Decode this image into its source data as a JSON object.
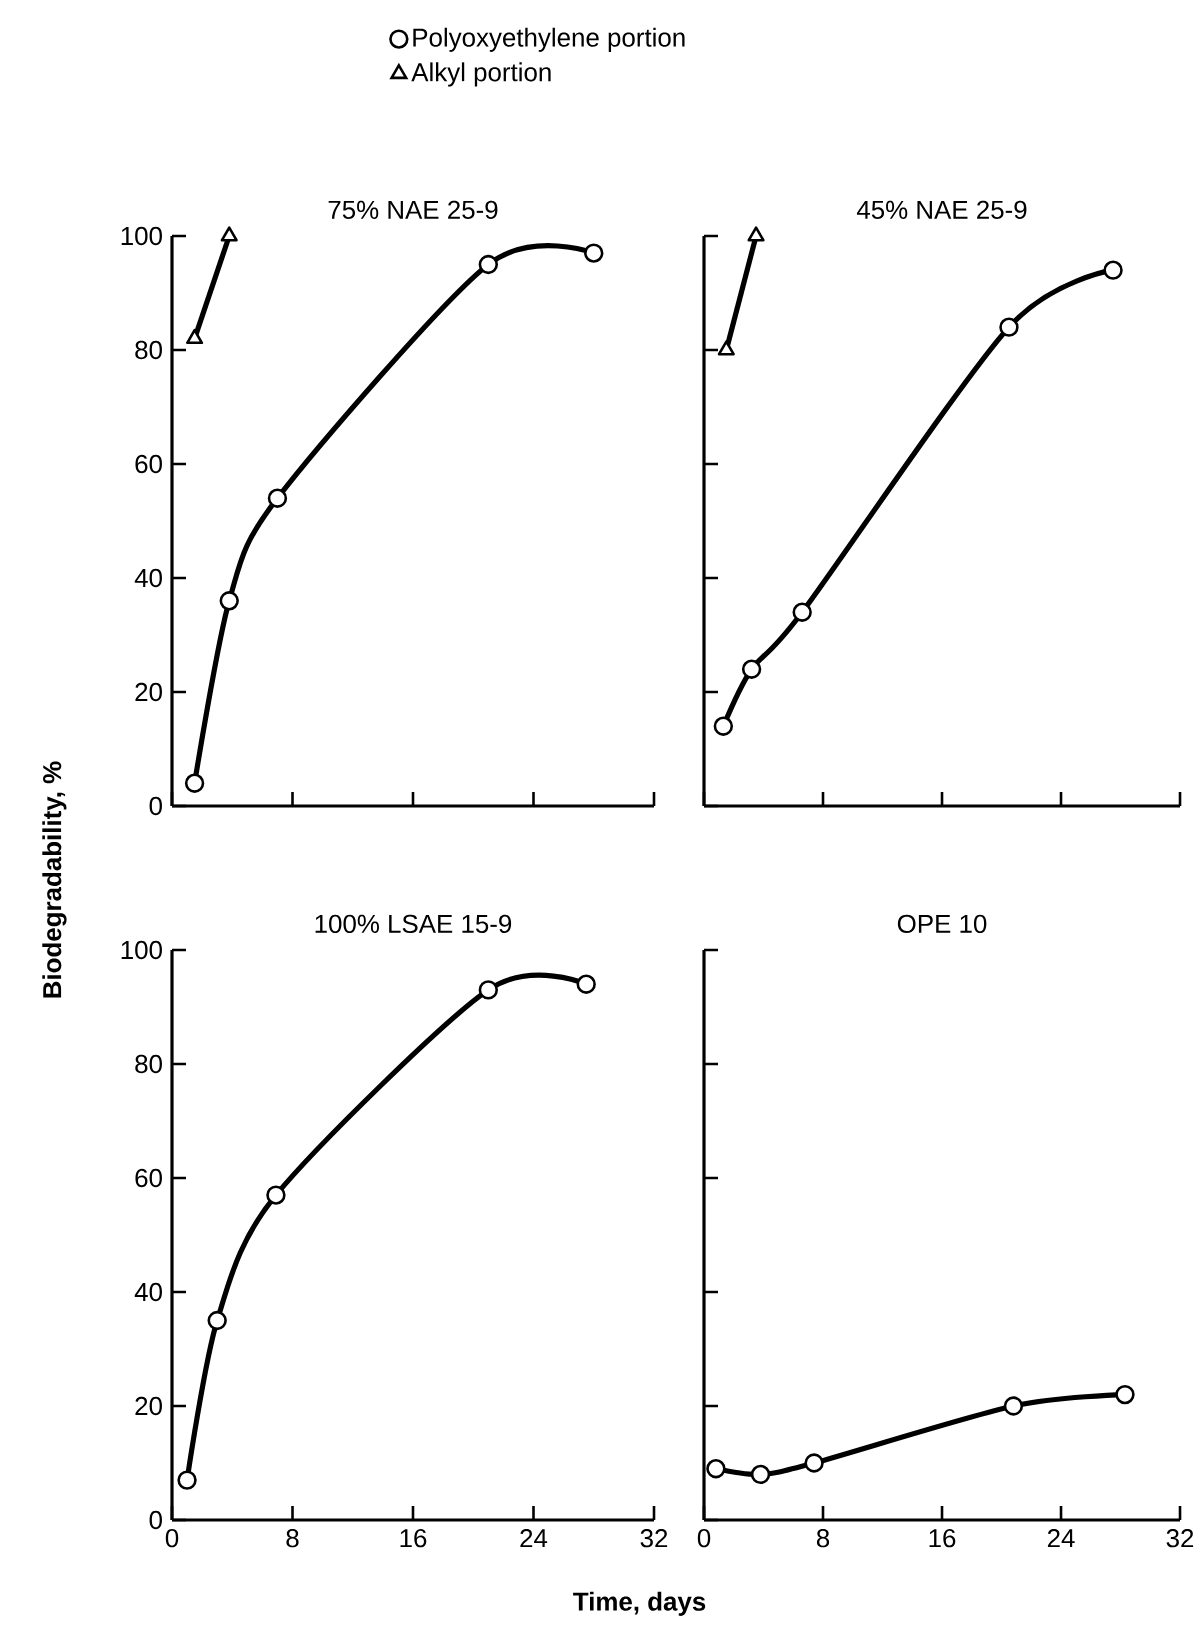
{
  "chart_data": [
    {
      "type": "line",
      "title": "75% NAE 25-9",
      "ylabel": "Biodegradability, %",
      "xlim": [
        0,
        32
      ],
      "ylim": [
        0,
        100
      ],
      "xticks": [
        0,
        8,
        16,
        24,
        32
      ],
      "yticks": [
        0,
        20,
        40,
        60,
        80,
        100
      ],
      "tick_labels": "y",
      "legend": "top",
      "series": [
        {
          "name": "Polyoxyethylene portion",
          "color": "#000000",
          "marker": "circle",
          "x": [
            1.5,
            3.8,
            7,
            21,
            28
          ],
          "values": [
            4,
            36,
            54,
            95,
            97
          ]
        },
        {
          "name": "Alkyl portion",
          "color": "#000000",
          "marker": "triangle",
          "x": [
            1.5,
            3.8
          ],
          "values": [
            82,
            100
          ]
        }
      ]
    },
    {
      "type": "line",
      "title": "45% NAE 25-9",
      "xlim": [
        0,
        32
      ],
      "ylim": [
        0,
        100
      ],
      "xticks": [
        0,
        8,
        16,
        24,
        32
      ],
      "yticks": [
        0,
        20,
        40,
        60,
        80,
        100
      ],
      "tick_labels": false,
      "series": [
        {
          "color": "#000000",
          "marker": "circle",
          "x": [
            1.3,
            3.2,
            6.6,
            20.5,
            27.5
          ],
          "values": [
            14,
            24,
            34,
            84,
            94
          ]
        },
        {
          "color": "#000000",
          "marker": "triangle",
          "x": [
            1.5,
            3.5
          ],
          "values": [
            80,
            100
          ]
        }
      ]
    },
    {
      "type": "line",
      "title": "100% LSAE 15-9",
      "xlabel": "Time, days",
      "xlim": [
        0,
        32
      ],
      "ylim": [
        0,
        100
      ],
      "xticks": [
        0,
        8,
        16,
        24,
        32
      ],
      "yticks": [
        0,
        20,
        40,
        60,
        80,
        100
      ],
      "series": [
        {
          "color": "#000000",
          "marker": "circle",
          "x": [
            1,
            3,
            6.9,
            21,
            27.5
          ],
          "values": [
            7,
            35,
            57,
            93,
            94
          ]
        }
      ]
    },
    {
      "type": "line",
      "title": "OPE 10",
      "xlim": [
        0,
        32
      ],
      "ylim": [
        0,
        100
      ],
      "xticks": [
        0,
        8,
        16,
        24,
        32
      ],
      "yticks": [
        0,
        20,
        40,
        60,
        80,
        100
      ],
      "tick_labels": "x",
      "series": [
        {
          "color": "#000000",
          "marker": "circle",
          "x": [
            0.8,
            3.8,
            7.4,
            20.8,
            28.3
          ],
          "values": [
            9,
            8,
            10,
            20,
            22
          ]
        }
      ]
    }
  ]
}
